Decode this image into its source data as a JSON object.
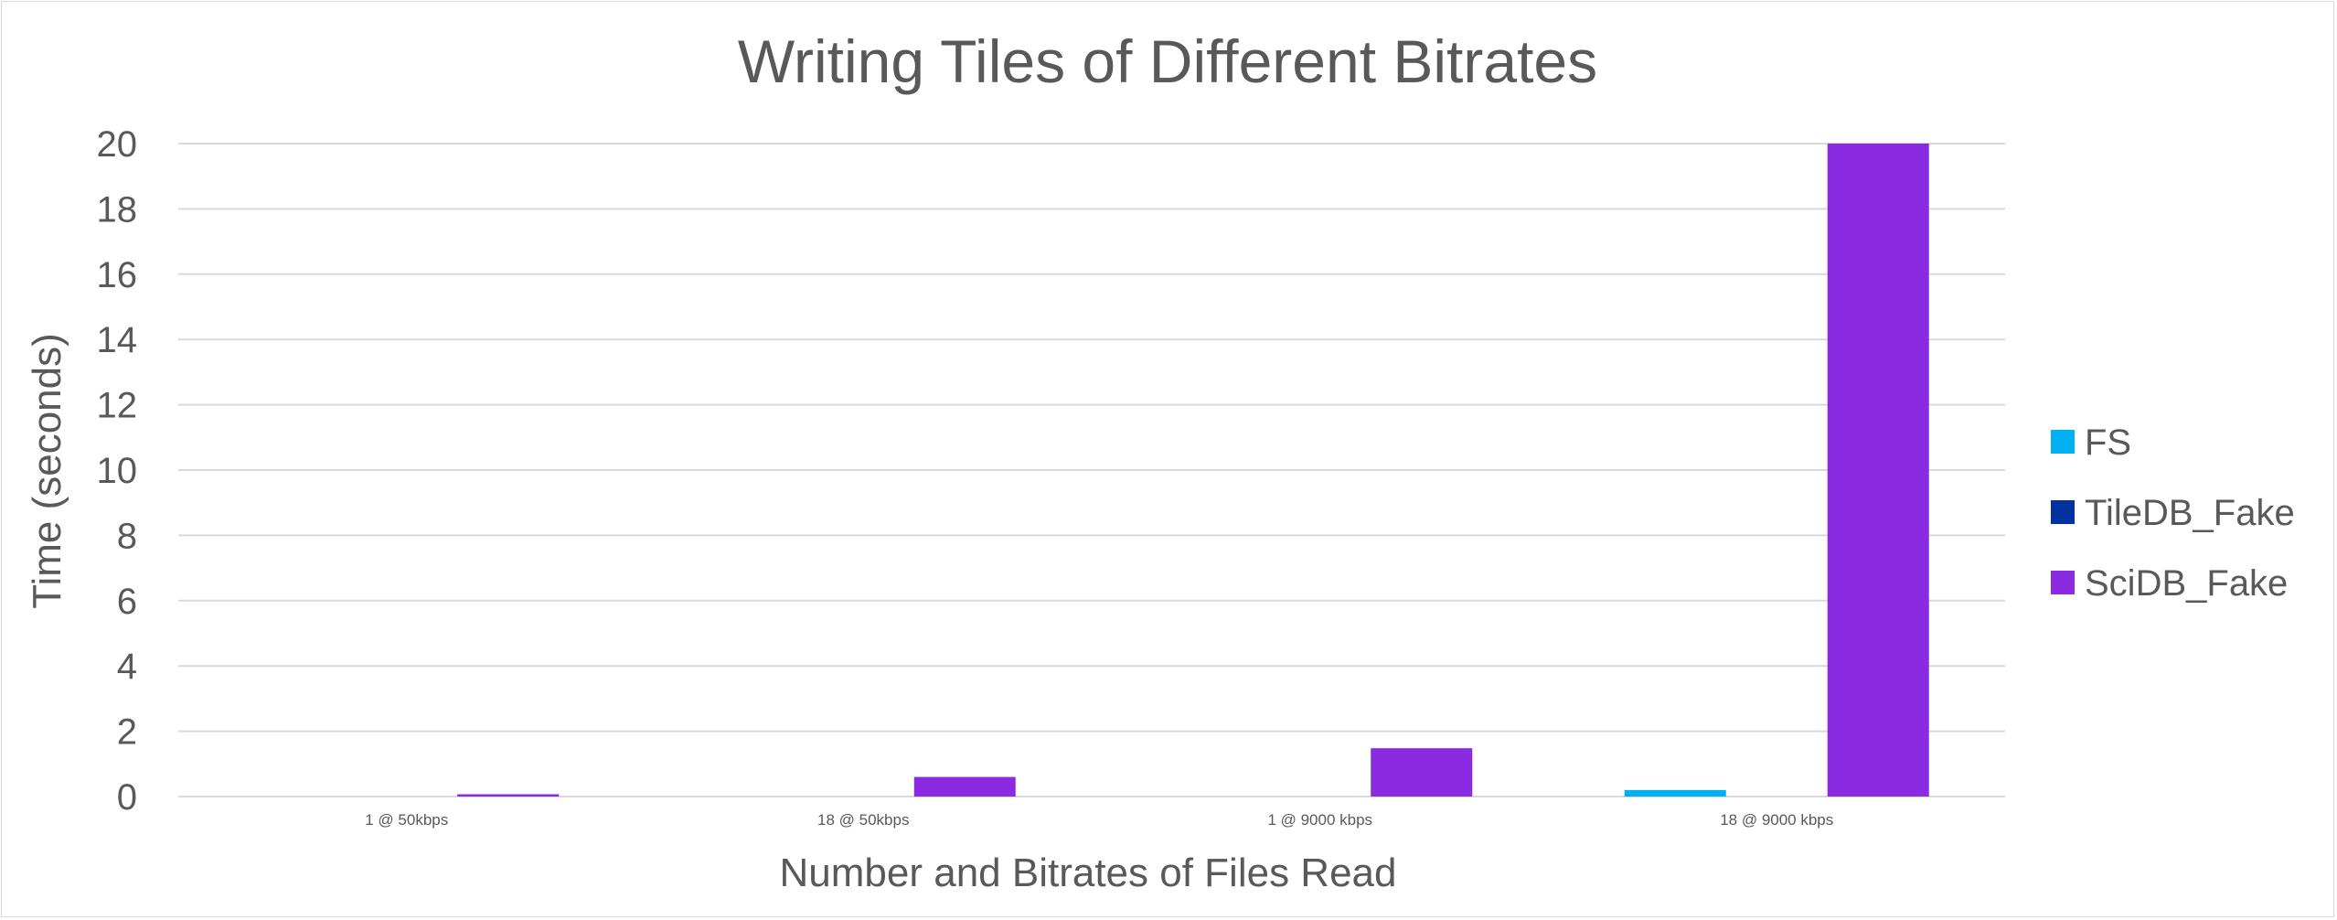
{
  "chart_data": {
    "type": "bar",
    "title": "Writing Tiles of Different Bitrates",
    "xlabel": "Number and Bitrates of Files Read",
    "ylabel": "Time (seconds)",
    "categories": [
      "1 @ 50kbps",
      "18 @ 50kbps",
      "1 @ 9000 kbps",
      "18 @ 9000 kbps"
    ],
    "ylim": [
      0,
      20
    ],
    "yticks": [
      0,
      2,
      4,
      6,
      8,
      10,
      12,
      14,
      16,
      18,
      20
    ],
    "grid": true,
    "legend_position": "right",
    "series": [
      {
        "name": "FS",
        "color": "#00b0f0",
        "values": [
          0.0,
          0.0,
          0.0,
          0.2
        ]
      },
      {
        "name": "TileDB_Fake",
        "color": "#0033a0",
        "values": [
          0.0,
          0.0,
          0.0,
          0.0
        ]
      },
      {
        "name": "SciDB_Fake",
        "color": "#8a2be2",
        "values": [
          0.07,
          0.6,
          1.48,
          20.0
        ]
      }
    ]
  }
}
